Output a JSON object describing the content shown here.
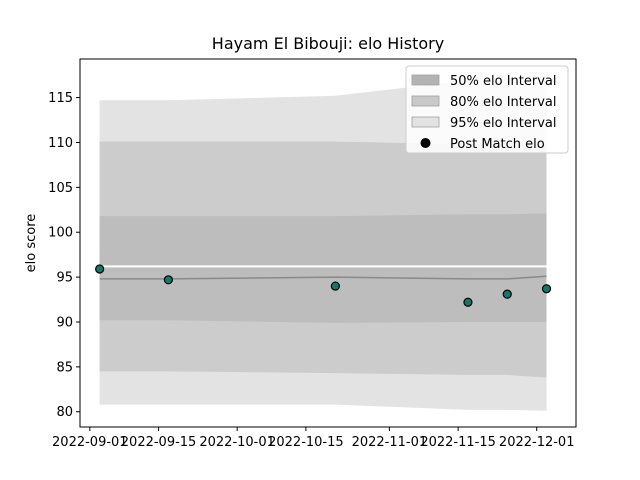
{
  "chart_data": {
    "type": "scatter",
    "title": "Hayam El Bibouji: elo History",
    "xlabel": "",
    "ylabel": "elo score",
    "xlim": [
      "2022-08-30",
      "2022-12-09"
    ],
    "ylim": [
      78.3,
      119.3
    ],
    "x_ticks": [
      "2022-09-01",
      "2022-09-15",
      "2022-10-01",
      "2022-10-15",
      "2022-11-01",
      "2022-11-15",
      "2022-12-01"
    ],
    "y_ticks": [
      80,
      85,
      90,
      95,
      100,
      105,
      110,
      115
    ],
    "grid": false,
    "legend_position": "top-right",
    "dates": [
      "2022-09-03",
      "2022-09-17",
      "2022-10-21",
      "2022-11-17",
      "2022-11-25",
      "2022-12-03"
    ],
    "intervals": [
      {
        "name": "95% elo Interval",
        "color": "#e3e3e3",
        "upper": [
          114.7,
          114.7,
          115.2,
          116.9,
          116.3,
          116.3
        ],
        "lower": [
          80.8,
          80.8,
          80.8,
          80.2,
          80.2,
          80.1
        ]
      },
      {
        "name": "80% elo Interval",
        "color": "#cccccc",
        "upper": [
          110.1,
          110.1,
          110.1,
          109.8,
          109.8,
          109.8
        ],
        "lower": [
          84.5,
          84.5,
          84.3,
          84.1,
          84.1,
          83.8
        ]
      },
      {
        "name": "50% elo Interval",
        "color": "#bdbdbd",
        "upper": [
          101.8,
          101.8,
          101.8,
          102.0,
          102.0,
          102.1
        ],
        "lower": [
          90.2,
          90.2,
          89.9,
          90.0,
          90.0,
          90.0
        ]
      }
    ],
    "mean_line": [
      94.8,
      94.8,
      95.0,
      94.8,
      94.8,
      95.1
    ],
    "reference_level": 96.2,
    "series": [
      {
        "name": "Post Match elo",
        "x": [
          "2022-09-03",
          "2022-09-17",
          "2022-10-21",
          "2022-11-17",
          "2022-11-25",
          "2022-12-03"
        ],
        "y": [
          95.9,
          94.7,
          94.0,
          92.2,
          93.1,
          93.7
        ],
        "color": "#0e7a6e"
      }
    ],
    "legend": [
      "50% elo Interval",
      "80% elo Interval",
      "95% elo Interval",
      "Post Match elo"
    ]
  }
}
